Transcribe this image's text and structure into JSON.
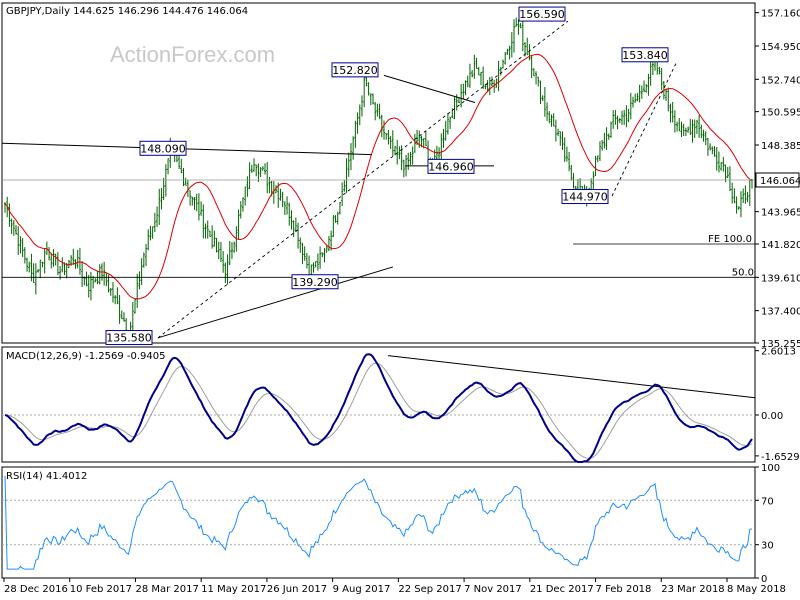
{
  "header": {
    "symbol": "GBPJPY,Daily",
    "ohlc": "144.625 146.296 144.476 146.064"
  },
  "watermark": "ActionForex.com",
  "colors": {
    "price": "#006400",
    "ma": "#e00000",
    "macd": "#00008b",
    "signal": "#a0a0a0",
    "rsi": "#1e90ff",
    "box": "#00008b"
  },
  "chart_data": [
    {
      "type": "candlestick",
      "name": "price",
      "ylim": [
        135.255,
        157.8
      ],
      "y_ticks": [
        "157.160",
        "154.950",
        "152.740",
        "150.595",
        "148.385",
        "146.064",
        "143.965",
        "141.820",
        "139.610",
        "137.400",
        "135.255"
      ],
      "current": "146.064",
      "x_labels": [
        "28 Dec 2016",
        "10 Feb 2017",
        "28 Mar 2017",
        "11 May 2017",
        "26 Jun 2017",
        "9 Aug 2017",
        "22 Sep 2017",
        "7 Nov 2017",
        "21 Dec 2017",
        "7 Feb 2018",
        "23 Mar 2018",
        "8 May 2018"
      ],
      "annotations": [
        "135.580",
        "148.090",
        "139.290",
        "152.820",
        "146.960",
        "156.590",
        "144.970",
        "153.840",
        "FE 100.0",
        "50.0"
      ],
      "approx_close_path": [
        144.5,
        142,
        139.5,
        141.5,
        140,
        141,
        139,
        140,
        138,
        136,
        141,
        144,
        148,
        146,
        144,
        142,
        140,
        144,
        147.5,
        146,
        145,
        143,
        140,
        141,
        144,
        148,
        152.5,
        150,
        148,
        147,
        149,
        147,
        150,
        152,
        153.5,
        152,
        154,
        156.5,
        154,
        151,
        149,
        146,
        145,
        148,
        150,
        150.5,
        152,
        153.8,
        151,
        149,
        150,
        148,
        147,
        144,
        146.064
      ]
    },
    {
      "type": "line",
      "name": "macd",
      "title": "MACD(12,26,9) -1.2569 -0.9405",
      "ylim": [
        -1.9,
        2.75
      ],
      "y_ticks": [
        "2.6013",
        "0.00",
        "-1.6529"
      ]
    },
    {
      "type": "line",
      "name": "rsi",
      "title": "RSI(14) 41.4012",
      "ylim": [
        0,
        100
      ],
      "y_ticks": [
        "100",
        "70",
        "30",
        "0"
      ]
    }
  ]
}
